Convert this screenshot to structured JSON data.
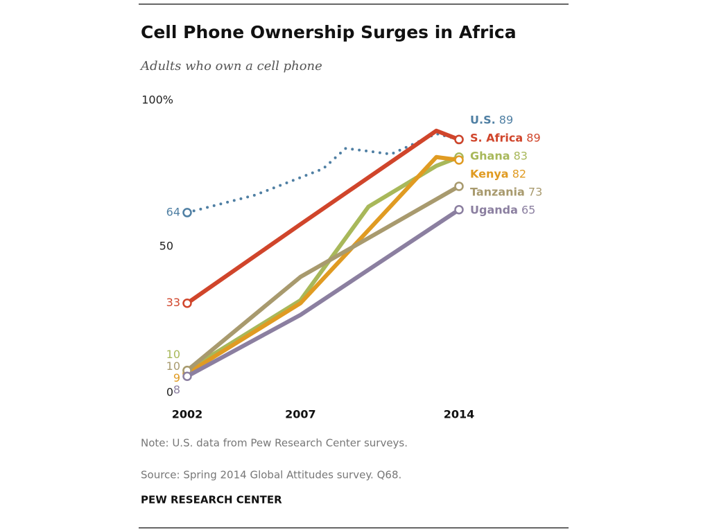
{
  "chart_data": {
    "type": "line",
    "title": "Cell Phone Ownership Surges in Africa",
    "subtitle": "Adults who own a cell phone",
    "xlim": [
      2002,
      2014
    ],
    "xticks": [
      2002,
      2007,
      2014
    ],
    "ylim": [
      0,
      100
    ],
    "yticks": [
      {
        "value": 100,
        "label": "100%"
      },
      50,
      0
    ],
    "series": [
      {
        "name": "U.S.",
        "color": "#4f7fa3",
        "dashed": true,
        "x": [
          2002,
          2005,
          2007,
          2008,
          2009,
          2010,
          2011,
          2013,
          2014
        ],
        "values": [
          64,
          70,
          76,
          79,
          86,
          85,
          84,
          91,
          89
        ]
      },
      {
        "name": "S. Africa",
        "color": "#d0452b",
        "x": [
          2002,
          2007,
          2013,
          2014
        ],
        "values": [
          33,
          60,
          92,
          89
        ]
      },
      {
        "name": "Ghana",
        "color": "#a8b85a",
        "x": [
          2002,
          2007,
          2010,
          2013,
          2014
        ],
        "values": [
          10,
          34,
          66,
          80,
          83
        ]
      },
      {
        "name": "Kenya",
        "color": "#e09b22",
        "x": [
          2002,
          2007,
          2010,
          2013,
          2014
        ],
        "values": [
          9,
          33,
          58,
          83,
          82
        ]
      },
      {
        "name": "Tanzania",
        "color": "#a89a6e",
        "x": [
          2002,
          2007,
          2014
        ],
        "values": [
          10,
          42,
          73
        ]
      },
      {
        "name": "Uganda",
        "color": "#8b7fa0",
        "x": [
          2002,
          2007,
          2014
        ],
        "values": [
          8,
          29,
          65
        ]
      }
    ],
    "note": "Note: U.S. data from Pew Research Center surveys.",
    "source": "Source: Spring 2014 Global Attitudes survey. Q68.",
    "credit": "PEW RESEARCH CENTER"
  }
}
